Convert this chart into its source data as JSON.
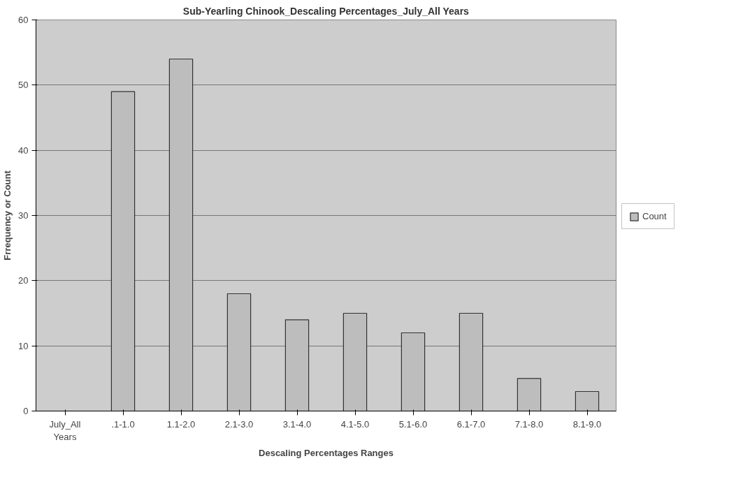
{
  "chart_data": {
    "type": "bar",
    "title": "Sub-Yearling Chinook_Descaling Percentages_July_All Years",
    "xlabel": "Descaling Percentages Ranges",
    "ylabel": "Frrequency or Count",
    "categories": [
      "July_All Years",
      ".1-1.0",
      "1.1-2.0",
      "2.1-3.0",
      "3.1-4.0",
      "4.1-5.0",
      "5.1-6.0",
      "6.1-7.0",
      "7.1-8.0",
      "8.1-9.0"
    ],
    "series": [
      {
        "name": "Count",
        "color": "#bdbdbd",
        "values": [
          null,
          49,
          54,
          18,
          14,
          15,
          12,
          15,
          5,
          3
        ]
      }
    ],
    "ylim": [
      0,
      60
    ],
    "yticks": [
      0,
      10,
      20,
      30,
      40,
      50,
      60
    ],
    "grid": "y",
    "legend": "right"
  }
}
